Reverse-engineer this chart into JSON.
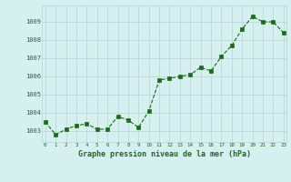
{
  "x": [
    0,
    1,
    2,
    3,
    4,
    5,
    6,
    7,
    8,
    9,
    10,
    11,
    12,
    13,
    14,
    15,
    16,
    17,
    18,
    19,
    20,
    21,
    22,
    23
  ],
  "y": [
    1003.5,
    1002.8,
    1003.1,
    1003.3,
    1003.4,
    1003.1,
    1003.1,
    1003.8,
    1003.6,
    1003.2,
    1004.1,
    1005.8,
    1005.9,
    1006.0,
    1006.1,
    1006.5,
    1006.3,
    1007.1,
    1007.7,
    1008.6,
    1009.3,
    1009.0,
    1009.0,
    1008.4
  ],
  "line_color": "#1a6b1a",
  "marker_color": "#1a6b1a",
  "bg_color": "#d6f0f0",
  "grid_color": "#b8d4d4",
  "xlabel": "Graphe pression niveau de la mer (hPa)",
  "xlabel_color": "#1a6b1a",
  "tick_color": "#1a6b1a",
  "ylim": [
    1002.4,
    1009.9
  ],
  "yticks": [
    1003,
    1004,
    1005,
    1006,
    1007,
    1008,
    1009
  ],
  "xticks": [
    0,
    1,
    2,
    3,
    4,
    5,
    6,
    7,
    8,
    9,
    10,
    11,
    12,
    13,
    14,
    15,
    16,
    17,
    18,
    19,
    20,
    21,
    22,
    23
  ],
  "xlim": [
    -0.3,
    23.3
  ]
}
